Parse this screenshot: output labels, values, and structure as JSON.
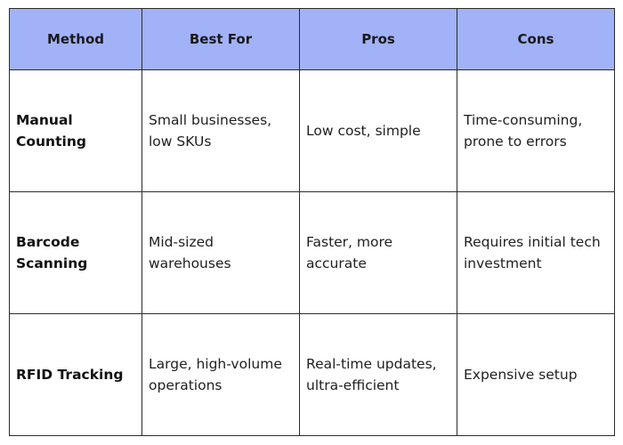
{
  "table": {
    "headers": [
      "Method",
      "Best For",
      "Pros",
      "Cons"
    ],
    "rows": [
      {
        "method": "Manual Counting",
        "best_for": "Small businesses, low SKUs",
        "pros": "Low cost, simple",
        "cons": "Time-consuming, prone to errors"
      },
      {
        "method": "Barcode Scanning",
        "best_for": "Mid-sized warehouses",
        "pros": "Faster, more accurate",
        "cons": "Requires initial tech investment"
      },
      {
        "method": "RFID Tracking",
        "best_for": "Large, high-volume operations",
        "pros": "Real-time updates, ultra-efficient",
        "cons": "Expensive setup"
      }
    ]
  },
  "colors": {
    "header_background": "#a1b2f9",
    "border": "#2b2b2b",
    "text": "#1f1f1f"
  }
}
